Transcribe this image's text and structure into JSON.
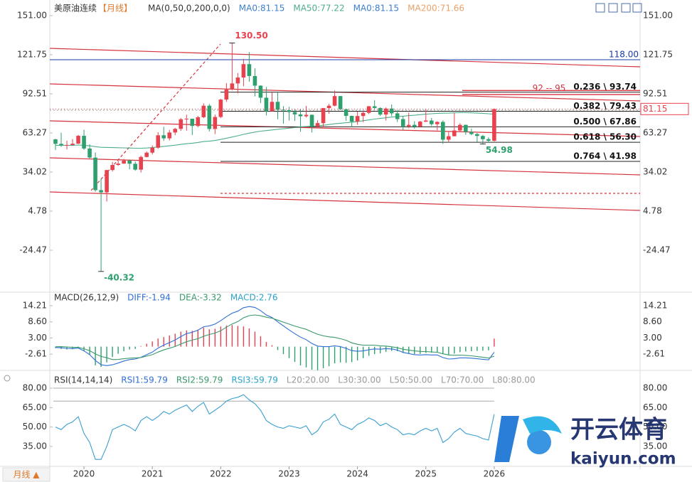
{
  "chart_data": [
    {
      "type": "candlestick",
      "title": "美原油连续",
      "period": "【月线】",
      "legend": [
        {
          "label": "MA(0,50,0,200,0,0)",
          "color": "#333333"
        },
        {
          "label": "MA0:81.15",
          "color": "#3d7fd1"
        },
        {
          "label": "MA50:77.22",
          "color": "#4dae8c"
        },
        {
          "label": "MA0:81.15",
          "color": "#3d7fd1"
        },
        {
          "label": "MA200:71.66",
          "color": "#e9a26a"
        }
      ],
      "up_color": "#e8424f",
      "down_color": "#2ea06d",
      "candles": [
        [
          58.5,
          58.8,
          50.5,
          55.1
        ],
        [
          55.1,
          63.4,
          52.8,
          54.1
        ],
        [
          54.1,
          57.5,
          50.9,
          54.2
        ],
        [
          54.2,
          58.7,
          54.1,
          55.2
        ],
        [
          55.2,
          61.8,
          55.0,
          61.1
        ],
        [
          61.1,
          65.6,
          50.6,
          51.6
        ],
        [
          51.6,
          54.7,
          44.0,
          44.8
        ],
        [
          44.8,
          48.7,
          19.3,
          20.5
        ],
        [
          20.5,
          29.1,
          -40.32,
          18.8
        ],
        [
          18.8,
          35.6,
          12.0,
          35.5
        ],
        [
          35.5,
          41.6,
          34.4,
          39.3
        ],
        [
          39.3,
          42.5,
          38.7,
          40.3
        ],
        [
          40.3,
          43.8,
          40.2,
          42.6
        ],
        [
          42.6,
          43.4,
          36.1,
          40.2
        ],
        [
          40.2,
          41.9,
          34.9,
          35.8
        ],
        [
          35.8,
          46.3,
          33.6,
          45.3
        ],
        [
          45.3,
          49.4,
          44.9,
          48.5
        ],
        [
          48.5,
          53.9,
          47.2,
          52.2
        ],
        [
          52.2,
          63.8,
          51.4,
          61.5
        ],
        [
          61.5,
          67.9,
          57.3,
          59.2
        ],
        [
          59.2,
          65.5,
          57.6,
          63.6
        ],
        [
          63.6,
          67.0,
          61.6,
          66.3
        ],
        [
          66.3,
          74.5,
          64.8,
          73.5
        ],
        [
          73.5,
          76.9,
          65.0,
          73.9
        ],
        [
          73.9,
          73.9,
          61.7,
          68.5
        ],
        [
          68.5,
          76.0,
          67.5,
          75.0
        ],
        [
          75.0,
          85.4,
          74.3,
          83.6
        ],
        [
          83.6,
          84.9,
          64.4,
          66.2
        ],
        [
          66.2,
          77.0,
          62.4,
          75.2
        ],
        [
          75.2,
          88.8,
          74.3,
          88.2
        ],
        [
          88.2,
          100.5,
          86.5,
          95.7
        ],
        [
          95.7,
          130.5,
          95.0,
          100.3
        ],
        [
          100.3,
          108.0,
          92.9,
          104.7
        ],
        [
          104.7,
          118.7,
          98.2,
          114.7
        ],
        [
          114.7,
          123.7,
          101.5,
          105.8
        ],
        [
          105.8,
          111.5,
          90.6,
          98.6
        ],
        [
          98.6,
          98.9,
          85.7,
          89.6
        ],
        [
          89.6,
          97.6,
          76.3,
          79.5
        ],
        [
          79.5,
          93.6,
          79.3,
          86.5
        ],
        [
          86.5,
          93.7,
          73.6,
          80.6
        ],
        [
          80.6,
          83.3,
          70.1,
          80.3
        ],
        [
          80.3,
          82.7,
          72.5,
          78.9
        ],
        [
          78.9,
          80.6,
          72.3,
          77.1
        ],
        [
          77.1,
          80.9,
          64.1,
          75.7
        ],
        [
          75.7,
          83.5,
          74.8,
          76.8
        ],
        [
          76.8,
          77.0,
          63.6,
          68.1
        ],
        [
          68.1,
          72.7,
          66.8,
          70.6
        ],
        [
          70.6,
          82.0,
          67.6,
          81.8
        ],
        [
          81.8,
          84.9,
          77.6,
          83.6
        ],
        [
          83.6,
          95.0,
          83.1,
          90.8
        ],
        [
          90.8,
          90.9,
          80.4,
          81.0
        ],
        [
          81.0,
          81.5,
          72.4,
          76.0
        ],
        [
          76.0,
          76.2,
          67.7,
          71.7
        ],
        [
          71.7,
          79.3,
          69.3,
          75.9
        ],
        [
          75.9,
          79.6,
          71.4,
          78.3
        ],
        [
          78.3,
          83.4,
          77.3,
          83.2
        ],
        [
          83.2,
          87.7,
          80.7,
          81.9
        ],
        [
          81.9,
          82.4,
          76.0,
          77.0
        ],
        [
          77.0,
          82.3,
          72.5,
          81.5
        ],
        [
          81.5,
          84.5,
          75.8,
          77.9
        ],
        [
          77.9,
          80.2,
          71.5,
          73.6
        ],
        [
          73.6,
          76.0,
          65.3,
          68.2
        ],
        [
          68.2,
          78.5,
          66.8,
          69.3
        ],
        [
          69.3,
          72.0,
          66.5,
          68.0
        ],
        [
          68.0,
          72.3,
          67.3,
          71.7
        ],
        [
          71.7,
          80.8,
          71.4,
          72.5
        ],
        [
          72.5,
          74.4,
          68.6,
          69.8
        ],
        [
          69.8,
          72.0,
          65.2,
          71.5
        ],
        [
          71.5,
          72.6,
          55.1,
          58.2
        ],
        [
          58.2,
          63.9,
          56.1,
          60.8
        ],
        [
          60.8,
          78.4,
          60.7,
          65.1
        ],
        [
          65.1,
          70.5,
          64.2,
          69.3
        ],
        [
          69.3,
          69.4,
          61.9,
          64.0
        ],
        [
          64.0,
          66.4,
          61.5,
          62.4
        ],
        [
          62.4,
          63.2,
          56.5,
          61.0
        ],
        [
          61.0,
          61.8,
          54.98,
          58.6
        ],
        [
          58.6,
          60.0,
          55.9,
          57.4
        ],
        [
          57.4,
          81.5,
          56.8,
          81.15
        ]
      ],
      "series": [
        {
          "color": "#4dae8c",
          "values": [
            54,
            54,
            54,
            54,
            54.2,
            54,
            53.6,
            53,
            52.5,
            52.4,
            52.3,
            52.2,
            52.1,
            52,
            51.8,
            51.8,
            52,
            52.3,
            52.8,
            53.2,
            53.6,
            54.1,
            54.7,
            55.2,
            55.6,
            56.1,
            56.8,
            57.1,
            57.6,
            58.4,
            59.3,
            60.2,
            61.1,
            62.2,
            63.1,
            63.9,
            64.6,
            65.0,
            65.5,
            66.0,
            66.4,
            66.8,
            67.3,
            67.7,
            68.1,
            68.3,
            68.6,
            69.0,
            69.5,
            70.1,
            70.5,
            70.9,
            71.3,
            71.8,
            72.4,
            73.0,
            73.6,
            74.1,
            74.6,
            75.1,
            75.5,
            75.8,
            76.2,
            76.5,
            76.9,
            77.3,
            77.6,
            77.9,
            78.0,
            78.1,
            78.3,
            78.4,
            78.4,
            78.3,
            78.1,
            77.9,
            77.6,
            77.22
          ]
        }
      ],
      "xlim": [
        -1,
        102.6
      ],
      "xticks": [
        {
          "value": 5,
          "label": "2020"
        },
        {
          "value": 17,
          "label": "2021"
        },
        {
          "value": 29,
          "label": "2022"
        },
        {
          "value": 41,
          "label": "2023"
        },
        {
          "value": 53,
          "label": "2024"
        },
        {
          "value": 65,
          "label": "2025"
        },
        {
          "value": 77,
          "label": "2026"
        }
      ],
      "ylim": [
        -55.3,
        160.0
      ],
      "yticks": [
        {
          "value": 151,
          "label": "151.00"
        },
        {
          "value": 121.75,
          "label": "121.75"
        },
        {
          "value": 92.51,
          "label": "92.51"
        },
        {
          "value": 63.27,
          "label": "63.27"
        },
        {
          "value": 34.02,
          "label": "34.02"
        },
        {
          "value": 4.78,
          "label": "4.78"
        },
        {
          "value": -24.47,
          "label": "-24.47"
        }
      ],
      "levels": [
        {
          "value": 118,
          "label": "118.00",
          "color": "#1a3aa8"
        }
      ],
      "zone": {
        "low": 92,
        "high": 95,
        "label": "92 -- 95",
        "color": "#d6333d"
      },
      "fibonacci": [
        {
          "value": 93.74,
          "label": "0.236 \\ 93.74"
        },
        {
          "value": 79.43,
          "label": "0.382 \\ 79.43"
        },
        {
          "value": 67.86,
          "label": "0.500 \\ 67.86"
        },
        {
          "value": 56.3,
          "label": "0.618 \\ 56.30"
        },
        {
          "value": 41.98,
          "label": "0.764 \\ 41.98"
        }
      ],
      "annotations": [
        {
          "value": 130.5,
          "label": "130.50"
        },
        {
          "value": -40.32,
          "label": "-40.32"
        },
        {
          "value": 54.98,
          "label": "54.98"
        }
      ],
      "last_price": {
        "value": 81.15,
        "label": "81.15"
      }
    },
    {
      "type": "macd",
      "legend": [
        {
          "label": "MACD(26,12,9)",
          "color": "#333333"
        },
        {
          "label": "DIFF:-1.94",
          "color": "#2f6fd6"
        },
        {
          "label": "DEA:-3.32",
          "color": "#3a9a6a"
        },
        {
          "label": "MACD:2.76",
          "color": "#29a3c8"
        }
      ],
      "histogram": [
        -0.5,
        -0.8,
        -1.0,
        -0.9,
        -0.5,
        -1.5,
        -2.8,
        -6.5,
        -7.0,
        -5.5,
        -3.6,
        -2.5,
        -1.6,
        -1.0,
        -0.8,
        0.2,
        1.0,
        1.8,
        2.8,
        3.3,
        3.9,
        4.5,
        5.2,
        5.6,
        5.5,
        5.9,
        6.6,
        6.0,
        6.2,
        7.0,
        7.3,
        7.5,
        7.2,
        7.0,
        6.3,
        5.2,
        3.6,
        1.6,
        0.5,
        -1.2,
        -2.6,
        -4.0,
        -5.3,
        -6.5,
        -7.2,
        -8.0,
        -8.2,
        -7.5,
        -6.8,
        -5.8,
        -5.5,
        -5.6,
        -5.4,
        -4.8,
        -4.0,
        -3.2,
        -2.6,
        -2.3,
        -1.8,
        -1.5,
        -1.6,
        -2.2,
        -2.4,
        -2.6,
        -2.5,
        -2.2,
        -2.1,
        -1.9,
        -2.6,
        -2.8,
        -2.4,
        -1.9,
        -1.7,
        -1.6,
        -1.5,
        -1.4,
        -1.3,
        2.76
      ],
      "up_color": "#e8424f",
      "down_color": "#2ea06d",
      "series": [
        {
          "color": "#2f6fd6",
          "values": [
            -0.3,
            -0.4,
            -0.6,
            -0.7,
            -0.5,
            -1.5,
            -2.8,
            -4.8,
            -6.3,
            -6.6,
            -6.3,
            -5.7,
            -5.0,
            -4.5,
            -4.3,
            -3.7,
            -2.8,
            -1.9,
            -0.5,
            0.5,
            1.4,
            2.3,
            3.5,
            4.5,
            5.0,
            5.7,
            6.9,
            7.2,
            7.8,
            9.0,
            10.4,
            11.6,
            12.3,
            13.5,
            13.9,
            13.6,
            12.5,
            11.0,
            10.1,
            8.6,
            7.2,
            5.8,
            4.5,
            3.3,
            2.4,
            1.1,
            0.2,
            0.0,
            0.0,
            0.3,
            0.0,
            -0.6,
            -1.4,
            -1.6,
            -1.5,
            -1.1,
            -0.8,
            -0.9,
            -0.7,
            -0.8,
            -1.2,
            -2.0,
            -2.4,
            -2.8,
            -2.9,
            -2.8,
            -2.9,
            -2.9,
            -3.8,
            -4.3,
            -4.2,
            -3.9,
            -3.9,
            -4.0,
            -4.2,
            -4.4,
            -4.6,
            -1.94
          ]
        },
        {
          "color": "#3a9a6a",
          "values": [
            -0.05,
            0.0,
            -0.1,
            -0.25,
            -0.25,
            -0.75,
            -1.4,
            -2.55,
            -3.4,
            -3.85,
            -4.5,
            -4.45,
            -4.2,
            -4.0,
            -3.9,
            -3.8,
            -3.3,
            -2.8,
            -1.9,
            -1.15,
            -0.55,
            0.05,
            0.9,
            1.7,
            2.25,
            2.75,
            3.6,
            4.2,
            4.7,
            5.5,
            6.75,
            7.85,
            8.7,
            10.0,
            10.75,
            11.0,
            10.7,
            10.2,
            9.85,
            9.2,
            8.5,
            7.8,
            7.15,
            6.55,
            6.0,
            5.1,
            4.3,
            3.75,
            3.4,
            3.2,
            2.75,
            2.2,
            1.3,
            0.8,
            0.5,
            0.5,
            0.5,
            0.25,
            0.2,
            -0.05,
            -0.4,
            -0.9,
            -1.2,
            -1.5,
            -1.65,
            -1.7,
            -1.85,
            -1.95,
            -2.5,
            -2.9,
            -3.0,
            -2.95,
            -3.05,
            -3.2,
            -3.45,
            -3.7,
            -3.95,
            -3.32
          ]
        }
      ],
      "ylim": [
        -8.0,
        17.9
      ],
      "yticks": [
        {
          "value": 14.21,
          "label": "14.21"
        },
        {
          "value": 8.6,
          "label": "8.60"
        },
        {
          "value": 3,
          "label": "3.00"
        },
        {
          "value": -2.61,
          "label": "-2.61"
        }
      ]
    },
    {
      "type": "rsi",
      "legend": [
        {
          "label": "RSI(14,14,14)",
          "color": "#333333"
        },
        {
          "label": "RSI1:59.79",
          "color": "#2f6fd6"
        },
        {
          "label": "RSI2:59.79",
          "color": "#3a9a6a"
        },
        {
          "label": "RSI3:59.79",
          "color": "#29a3c8"
        },
        {
          "label": "L20:20.00",
          "color": "#999999"
        },
        {
          "label": "L30:30.00",
          "color": "#999999"
        },
        {
          "label": "L50:50.00",
          "color": "#999999"
        },
        {
          "label": "L70:70.00",
          "color": "#999999"
        },
        {
          "label": "L80:80.00",
          "color": "#999999"
        }
      ],
      "levels": [
        80,
        70
      ],
      "series": [
        {
          "color": "#3a9fd1",
          "values": [
            50,
            48,
            52,
            54,
            58,
            45,
            38,
            25,
            25,
            35,
            48,
            50,
            52,
            50,
            47,
            55,
            58,
            55,
            58,
            62,
            60,
            63,
            65,
            67,
            62,
            66,
            69,
            60,
            63,
            66,
            70,
            72,
            73,
            75,
            71,
            68,
            63,
            55,
            52,
            50,
            49,
            51,
            50,
            49,
            51,
            44,
            47,
            54,
            56,
            60,
            52,
            50,
            48,
            52,
            54,
            57,
            55,
            51,
            53,
            50,
            48,
            44,
            45,
            44,
            47,
            49,
            47,
            49,
            38,
            41,
            46,
            49,
            45,
            44,
            43,
            41,
            40,
            59.79
          ]
        }
      ],
      "ylim": [
        17.4,
        88.8
      ],
      "yticks": [
        {
          "value": 80,
          "label": "80.00"
        },
        {
          "value": 65,
          "label": "65.00"
        },
        {
          "value": 50,
          "label": "50.00"
        },
        {
          "value": 35,
          "label": "35.00"
        }
      ]
    }
  ],
  "footer": {
    "period": "月线 ▲"
  },
  "watermark": {
    "brand": "开云体育",
    "site": "kaiyun.com"
  }
}
